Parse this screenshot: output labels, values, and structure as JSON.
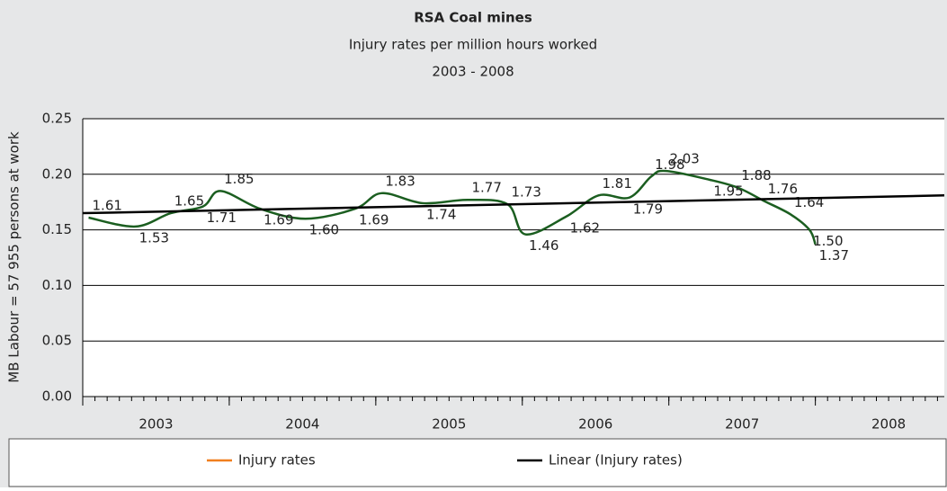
{
  "chart_data": {
    "type": "line",
    "title": "RSA Coal mines",
    "subtitle": "Injury rates per million hours worked",
    "period": "2003 - 2008",
    "ylabel": "MB Labour = 57 955 persons at work",
    "xlim": [
      2003,
      2008.88
    ],
    "xticks": [
      2003,
      2004,
      2005,
      2006,
      2007,
      2008
    ],
    "ylim": [
      0,
      0.25
    ],
    "yticks": [
      {
        "value": 0,
        "label": "0.00"
      },
      0.05,
      {
        "value": 0.1,
        "label": "0.10"
      },
      0.15,
      {
        "value": 0.2,
        "label": "0.20"
      },
      0.25
    ],
    "grid": true,
    "legend": "bottom",
    "series": [
      {
        "name": "Injury rates",
        "color": "#f07f1e",
        "line_color": "#1b5e20",
        "x": [
          2003.04,
          2003.36,
          2003.6,
          2003.82,
          2003.94,
          2004.21,
          2004.52,
          2004.86,
          2005.04,
          2005.32,
          2005.63,
          2005.9,
          2006.02,
          2006.3,
          2006.52,
          2006.73,
          2006.88,
          2006.98,
          2007.28,
          2007.47,
          2007.65,
          2007.83,
          2007.96,
          2008.0
        ],
        "values": [
          0.161,
          0.153,
          0.165,
          0.171,
          0.185,
          0.169,
          0.16,
          0.169,
          0.183,
          0.174,
          0.177,
          0.173,
          0.146,
          0.162,
          0.181,
          0.179,
          0.198,
          0.203,
          0.195,
          0.188,
          0.176,
          0.164,
          0.15,
          0.137
        ],
        "value_labels": [
          "1.61",
          "1.53",
          "1.65",
          "1.71",
          "1.85",
          "1.69",
          "1.60",
          "1.69",
          "1.83",
          "1.74",
          "1.77",
          "1.73",
          "1.46",
          "1.62",
          "1.81",
          "1.79",
          "1.98",
          "2.03",
          "1.95",
          "1.88",
          "1.76",
          "1.64",
          "1.50",
          "1.37"
        ]
      },
      {
        "name": "Linear (Injury rates)",
        "color": "#000000",
        "x": [
          2003,
          2008.88
        ],
        "values": [
          0.165,
          0.181
        ]
      }
    ]
  }
}
